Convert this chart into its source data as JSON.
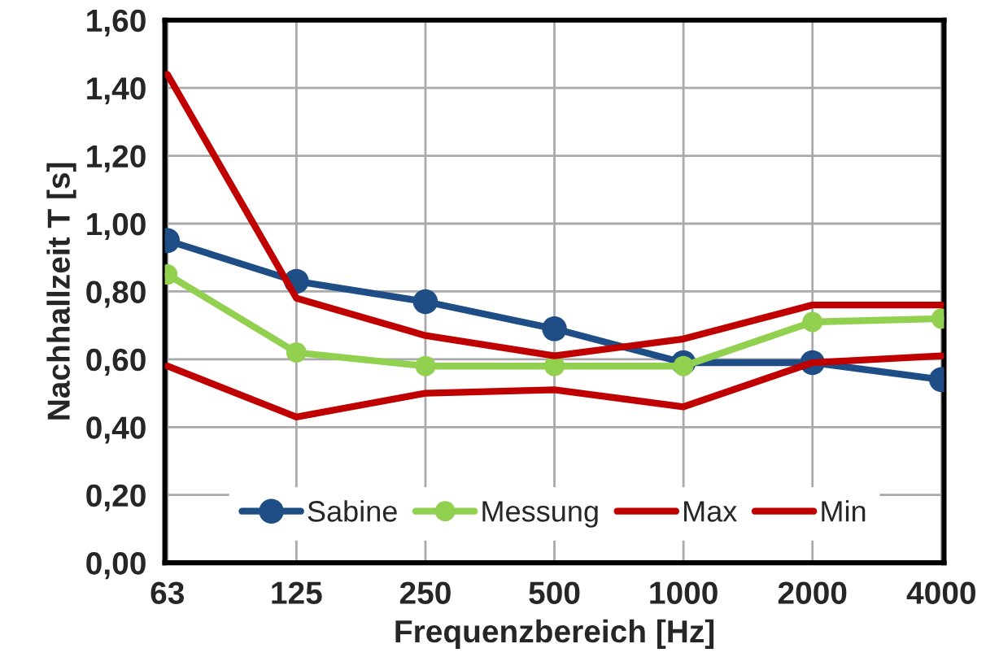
{
  "chart_data": {
    "type": "line",
    "xlabel": "Frequenzbereich [Hz]",
    "ylabel": "Nachhallzeit T [s]",
    "categories": [
      "63",
      "125",
      "250",
      "500",
      "1000",
      "2000",
      "4000"
    ],
    "series": [
      {
        "name": "Sabine",
        "color": "#1f4e87",
        "marker": "circle",
        "values": [
          0.95,
          0.83,
          0.77,
          0.69,
          0.59,
          0.59,
          0.54
        ]
      },
      {
        "name": "Messung",
        "color": "#92d050",
        "marker": "circle",
        "values": [
          0.85,
          0.62,
          0.58,
          0.58,
          0.58,
          0.71,
          0.72
        ]
      },
      {
        "name": "Max",
        "color": "#c00000",
        "marker": "none",
        "values": [
          1.44,
          0.78,
          0.67,
          0.61,
          0.66,
          0.76,
          0.76
        ]
      },
      {
        "name": "Min",
        "color": "#c00000",
        "marker": "none",
        "values": [
          0.58,
          0.43,
          0.5,
          0.51,
          0.46,
          0.59,
          0.61
        ]
      }
    ],
    "ylim": [
      0,
      1.6
    ],
    "yticks": [
      {
        "value": 0,
        "label": "0,00"
      },
      {
        "value": 0.2,
        "label": "0,20"
      },
      {
        "value": 0.4,
        "label": "0,40"
      },
      {
        "value": 0.6,
        "label": "0,60"
      },
      {
        "value": 0.8,
        "label": "0,80"
      },
      {
        "value": 1.0,
        "label": "1,00"
      },
      {
        "value": 1.2,
        "label": "1,20"
      },
      {
        "value": 1.4,
        "label": "1,40"
      },
      {
        "value": 1.6,
        "label": "1,60"
      }
    ],
    "grid": true,
    "legend": "bottom"
  }
}
